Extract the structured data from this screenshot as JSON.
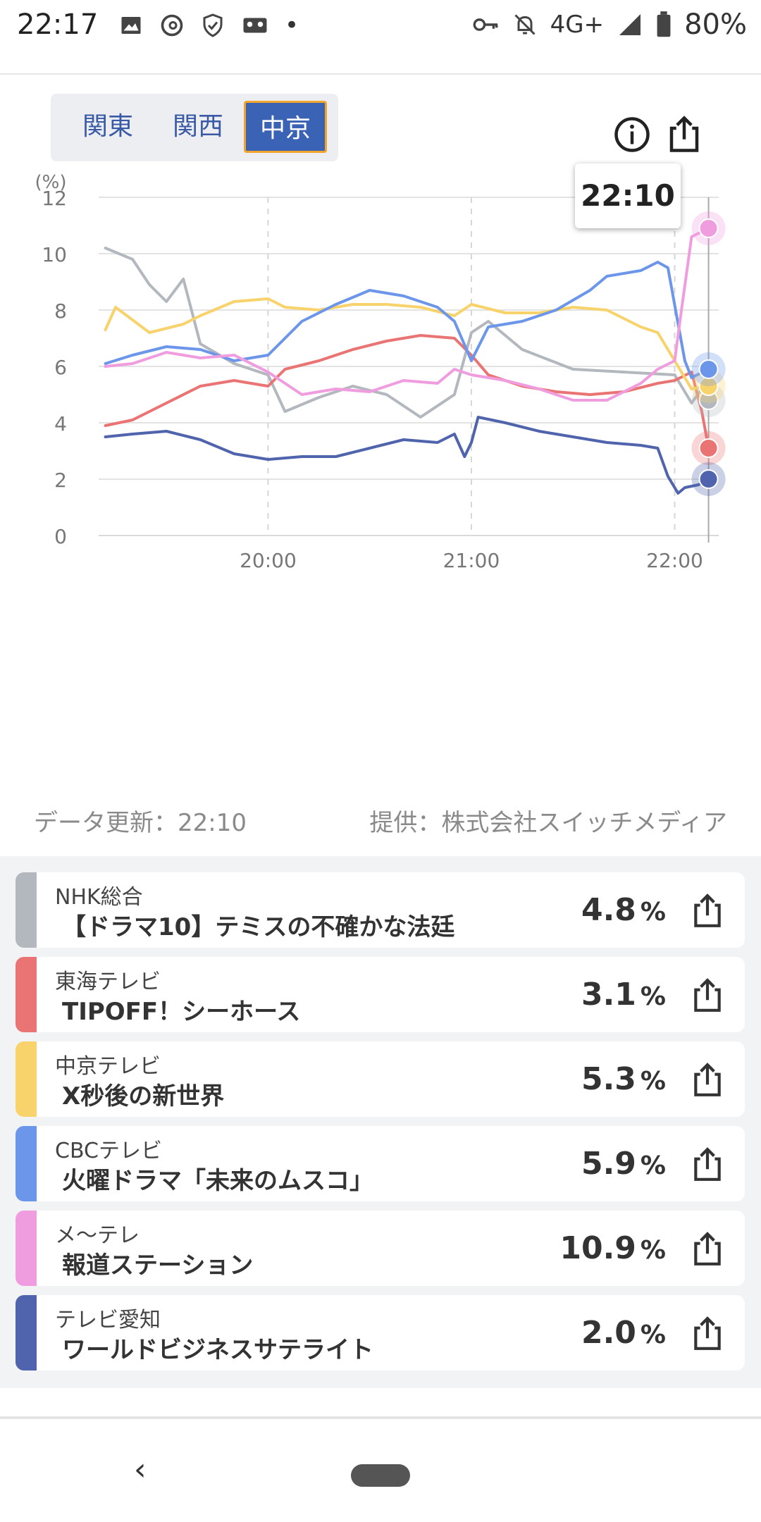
{
  "status_bar": {
    "time": "22:17",
    "network": "4G+",
    "battery": "80%",
    "icons": [
      "image-icon",
      "threads-icon",
      "shield-icon",
      "cassette-icon",
      "dot-icon",
      "key-icon",
      "bell-off-icon",
      "signal-icon",
      "battery-icon"
    ]
  },
  "region_tabs": [
    {
      "label": "関東",
      "active": false
    },
    {
      "label": "関西",
      "active": false
    },
    {
      "label": "中京",
      "active": true
    }
  ],
  "toolbar": {
    "info_icon": "info-icon",
    "share_icon": "share-icon"
  },
  "tooltip_time": "22:10",
  "chart_data": {
    "type": "line",
    "ylabel": "(%)",
    "ylim": [
      0,
      12
    ],
    "yticks": [
      "0",
      "2",
      "4",
      "6",
      "8",
      "10",
      "12"
    ],
    "xticks": [
      "20:00",
      "21:00",
      "22:00"
    ],
    "xlim": [
      "19:10",
      "22:13"
    ],
    "grid": true,
    "series": [
      {
        "name": "NHK総合",
        "color": "#b3b8bf",
        "x": [
          "19:12",
          "19:20",
          "19:25",
          "19:30",
          "19:35",
          "19:40",
          "19:50",
          "20:00",
          "20:05",
          "20:15",
          "20:25",
          "20:35",
          "20:45",
          "20:55",
          "21:00",
          "21:05",
          "21:15",
          "21:30",
          "21:45",
          "22:00",
          "22:05",
          "22:08",
          "22:10"
        ],
        "y": [
          10.2,
          9.8,
          8.9,
          8.3,
          9.1,
          6.8,
          6.1,
          5.7,
          4.4,
          4.9,
          5.3,
          5.0,
          4.2,
          5.0,
          7.2,
          7.6,
          6.6,
          5.9,
          5.8,
          5.7,
          4.7,
          5.2,
          4.8
        ]
      },
      {
        "name": "東海テレビ",
        "color": "#ea7373",
        "x": [
          "19:12",
          "19:20",
          "19:30",
          "19:40",
          "19:50",
          "20:00",
          "20:05",
          "20:15",
          "20:25",
          "20:35",
          "20:45",
          "20:55",
          "21:00",
          "21:05",
          "21:15",
          "21:25",
          "21:35",
          "21:45",
          "21:55",
          "22:00",
          "22:05",
          "22:08",
          "22:10"
        ],
        "y": [
          3.9,
          4.1,
          4.7,
          5.3,
          5.5,
          5.3,
          5.9,
          6.2,
          6.6,
          6.9,
          7.1,
          7.0,
          6.4,
          5.7,
          5.3,
          5.1,
          5.0,
          5.1,
          5.4,
          5.5,
          5.8,
          4.4,
          3.1
        ]
      },
      {
        "name": "中京テレビ",
        "color": "#f8d36c",
        "x": [
          "19:12",
          "19:15",
          "19:25",
          "19:35",
          "19:40",
          "19:50",
          "20:00",
          "20:05",
          "20:15",
          "20:25",
          "20:35",
          "20:45",
          "20:55",
          "21:00",
          "21:10",
          "21:20",
          "21:30",
          "21:40",
          "21:50",
          "21:55",
          "22:00",
          "22:05",
          "22:10"
        ],
        "y": [
          7.3,
          8.1,
          7.2,
          7.5,
          7.8,
          8.3,
          8.4,
          8.1,
          8.0,
          8.2,
          8.2,
          8.1,
          7.8,
          8.2,
          7.9,
          7.9,
          8.1,
          8.0,
          7.4,
          7.2,
          6.2,
          5.2,
          5.3
        ]
      },
      {
        "name": "CBCテレビ",
        "color": "#6b96ea",
        "x": [
          "19:12",
          "19:20",
          "19:30",
          "19:40",
          "19:50",
          "20:00",
          "20:10",
          "20:20",
          "20:30",
          "20:40",
          "20:50",
          "20:55",
          "21:00",
          "21:05",
          "21:15",
          "21:25",
          "21:35",
          "21:40",
          "21:50",
          "21:55",
          "21:58",
          "22:03",
          "22:05",
          "22:10"
        ],
        "y": [
          6.1,
          6.4,
          6.7,
          6.6,
          6.2,
          6.4,
          7.6,
          8.2,
          8.7,
          8.5,
          8.1,
          7.6,
          6.2,
          7.4,
          7.6,
          8.0,
          8.7,
          9.2,
          9.4,
          9.7,
          9.5,
          6.2,
          5.6,
          5.9
        ]
      },
      {
        "name": "メ〜テレ",
        "color": "#f09de0",
        "x": [
          "19:12",
          "19:20",
          "19:30",
          "19:40",
          "19:50",
          "20:00",
          "20:10",
          "20:20",
          "20:30",
          "20:40",
          "20:50",
          "20:55",
          "21:00",
          "21:10",
          "21:20",
          "21:30",
          "21:40",
          "21:50",
          "21:55",
          "22:00",
          "22:02",
          "22:05",
          "22:10"
        ],
        "y": [
          6.0,
          6.1,
          6.5,
          6.3,
          6.4,
          5.8,
          5.0,
          5.2,
          5.1,
          5.5,
          5.4,
          5.9,
          5.7,
          5.5,
          5.2,
          4.8,
          4.8,
          5.4,
          5.9,
          6.2,
          8.0,
          10.6,
          10.9
        ]
      },
      {
        "name": "テレビ愛知",
        "color": "#4f64ad",
        "x": [
          "19:12",
          "19:20",
          "19:30",
          "19:40",
          "19:50",
          "20:00",
          "20:10",
          "20:20",
          "20:30",
          "20:40",
          "20:50",
          "20:55",
          "20:58",
          "21:00",
          "21:02",
          "21:10",
          "21:20",
          "21:30",
          "21:40",
          "21:50",
          "21:55",
          "21:58",
          "22:01",
          "22:03",
          "22:07",
          "22:10"
        ],
        "y": [
          3.5,
          3.6,
          3.7,
          3.4,
          2.9,
          2.7,
          2.8,
          2.8,
          3.1,
          3.4,
          3.3,
          3.6,
          2.8,
          3.3,
          4.2,
          4.0,
          3.7,
          3.5,
          3.3,
          3.2,
          3.1,
          2.1,
          1.5,
          1.7,
          1.8,
          2.0
        ]
      }
    ],
    "current_time": "22:10",
    "current_values": {
      "NHK総合": 4.8,
      "東海テレビ": 3.1,
      "中京テレビ": 5.3,
      "CBCテレビ": 5.9,
      "メ〜テレ": 10.9,
      "テレビ愛知": 2.0
    }
  },
  "source": {
    "updated": "データ更新：22:10",
    "provider": "提供：株式会社スイッチメディア"
  },
  "channels": [
    {
      "name": "NHK総合",
      "program": "【ドラマ10】テミスの不確かな法廷",
      "value": "4.8",
      "unit": "%",
      "color": "#b3b8bf"
    },
    {
      "name": "東海テレビ",
      "program": "TIPOFF！シーホース",
      "value": "3.1",
      "unit": "%",
      "color": "#ea7373"
    },
    {
      "name": "中京テレビ",
      "program": "X秒後の新世界",
      "value": "5.3",
      "unit": "%",
      "color": "#f8d36c"
    },
    {
      "name": "CBCテレビ",
      "program": "火曜ドラマ「未来のムスコ」",
      "value": "5.9",
      "unit": "%",
      "color": "#6b96ea"
    },
    {
      "name": "メ〜テレ",
      "program": "報道ステーション",
      "value": "10.9",
      "unit": "%",
      "color": "#f09de0"
    },
    {
      "name": "テレビ愛知",
      "program": "ワールドビジネスサテライト",
      "value": "2.0",
      "unit": "%",
      "color": "#4f64ad"
    }
  ]
}
